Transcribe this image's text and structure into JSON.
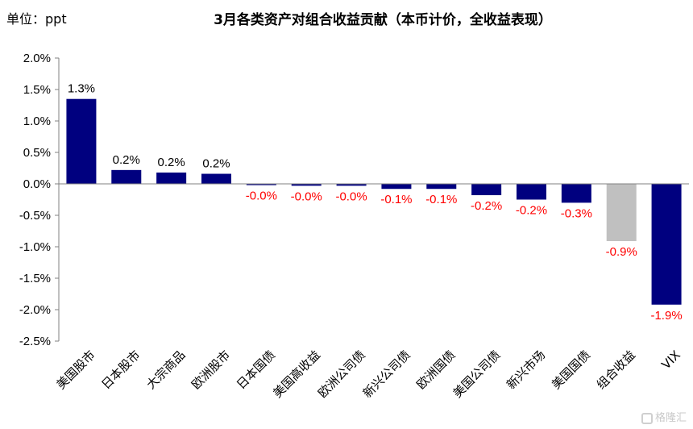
{
  "unit_label": "单位：ppt",
  "watermark": "格隆汇",
  "colors": {
    "positive_bar": "#00007f",
    "total_bar": "#c0c0c0",
    "negative_label": "#ff0000",
    "positive_label": "#000000"
  },
  "chart_data": {
    "type": "bar",
    "title": "3月各类资产对组合收益贡献（本币计价，全收益表现）",
    "categories": [
      "美国股市",
      "日本股市",
      "大宗商品",
      "欧洲股市",
      "日本国债",
      "美国高收益",
      "欧洲公司债",
      "新兴公司债",
      "欧洲国债",
      "美国公司债",
      "新兴市场",
      "美国国债",
      "组合收益",
      "VIX"
    ],
    "values": [
      1.35,
      0.22,
      0.18,
      0.16,
      -0.02,
      -0.03,
      -0.03,
      -0.08,
      -0.08,
      -0.18,
      -0.25,
      -0.3,
      -0.91,
      -1.92
    ],
    "data_labels": [
      "1.3%",
      "0.2%",
      "0.2%",
      "0.2%",
      "-0.0%",
      "-0.0%",
      "-0.0%",
      "-0.1%",
      "-0.1%",
      "-0.2%",
      "-0.2%",
      "-0.3%",
      "-0.9%",
      "-1.9%"
    ],
    "highlight_category": "组合收益",
    "ylim": [
      -2.5,
      2.0
    ],
    "yticks": [
      2.0,
      1.5,
      1.0,
      0.5,
      0.0,
      -0.5,
      -1.0,
      -1.5,
      -2.0,
      -2.5
    ],
    "ytick_labels": [
      "2.0%",
      "1.5%",
      "1.0%",
      "0.5%",
      "0.0%",
      "-0.5%",
      "-1.0%",
      "-1.5%",
      "-2.0%",
      "-2.5%"
    ],
    "xlabel": "",
    "ylabel": "",
    "grid": false,
    "legend": "none"
  }
}
